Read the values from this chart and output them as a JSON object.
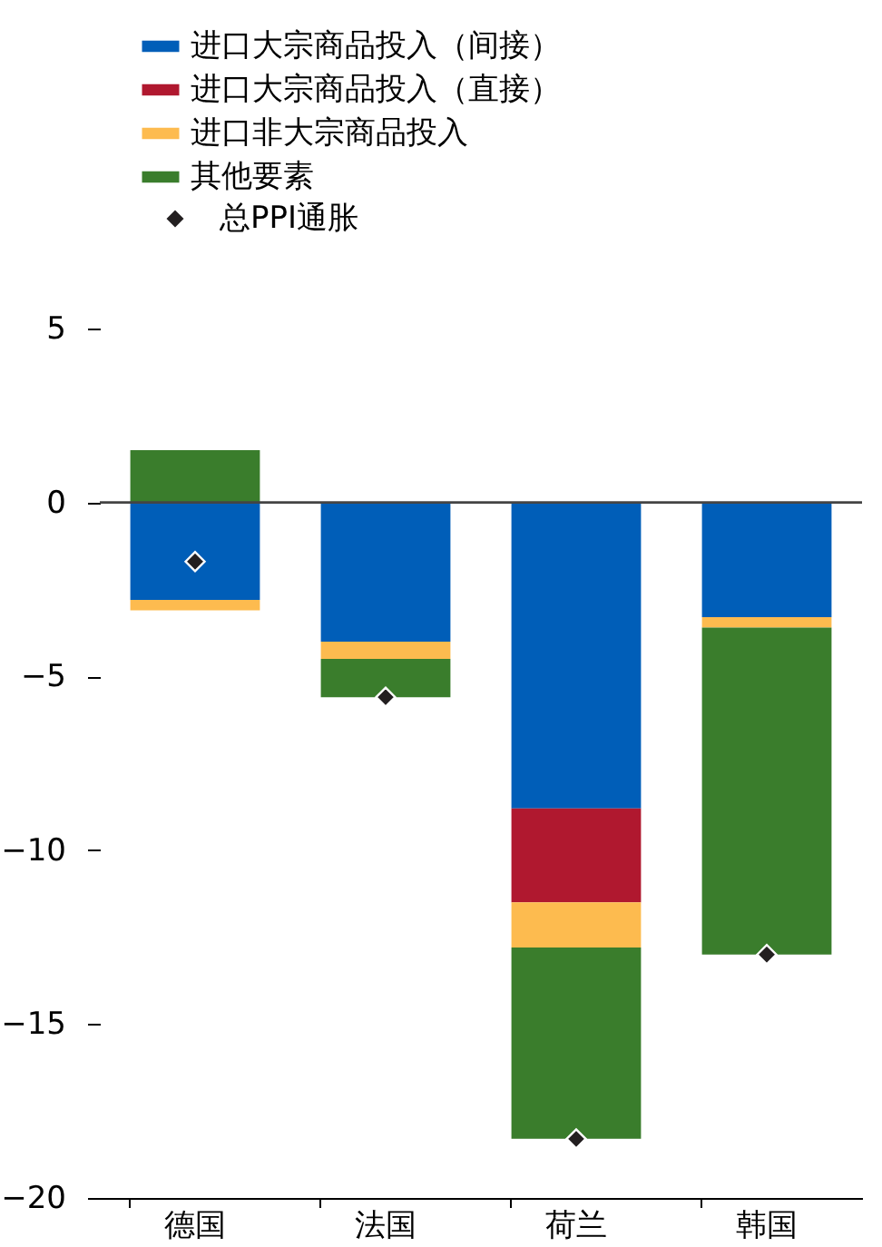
{
  "chart_data": {
    "type": "bar",
    "stacked": true,
    "categories": [
      "德国",
      "法国",
      "荷兰",
      "韩国"
    ],
    "series": [
      {
        "name": "进口大宗商品投入（间接）",
        "color": "#005eb8",
        "values": [
          -2.8,
          -4.0,
          -8.8,
          -3.3
        ]
      },
      {
        "name": "进口大宗商品投入（直接）",
        "color": "#b0182f",
        "values": [
          null,
          null,
          -2.7,
          null
        ]
      },
      {
        "name": "进口非大宗商品投入",
        "color": "#fdbb4f",
        "values": [
          -0.3,
          -0.5,
          -1.3,
          -0.3
        ]
      },
      {
        "name": "其他要素",
        "color": "#3a7d2c",
        "values": [
          1.5,
          -1.1,
          -5.5,
          -9.4
        ]
      },
      {
        "name": "总PPI通胀",
        "type": "scatter",
        "marker": "diamond",
        "color": "#231f20",
        "values": [
          -1.7,
          -5.6,
          -18.3,
          -13.0
        ]
      }
    ],
    "ylim": [
      -20,
      5
    ],
    "yticks": [
      -20,
      -15,
      -10,
      -5,
      0,
      5
    ],
    "grid": false,
    "legend": "top left",
    "ref_lines": [
      {
        "axis": "y",
        "value": 0
      }
    ]
  }
}
